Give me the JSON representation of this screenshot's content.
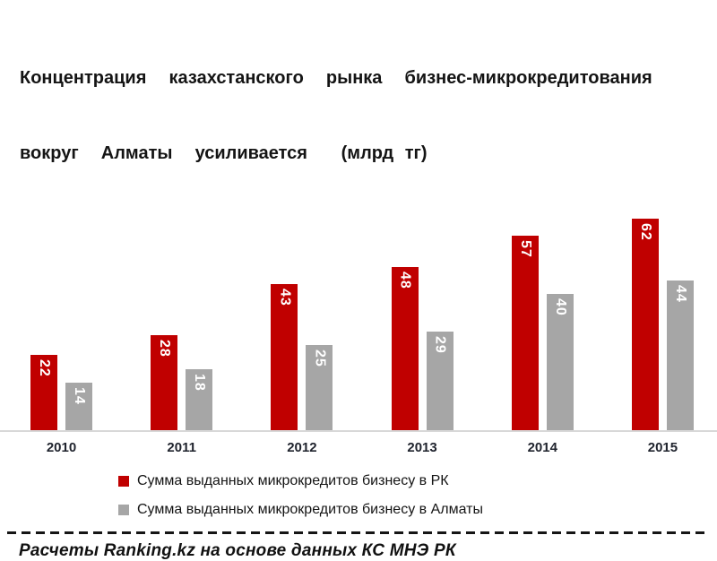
{
  "title": {
    "line1": "Концентрация  казахстанского  рынка  бизнес-микрокредитования",
    "line2": "вокруг  Алматы  усиливается   (млрд тг)"
  },
  "chart_data": {
    "type": "bar",
    "title": "Концентрация казахстанского рынка бизнес-микрокредитования вокруг Алматы усиливается (млрд тг)",
    "unit": "млрд тг",
    "categories": [
      "2010",
      "2011",
      "2012",
      "2013",
      "2014",
      "2015"
    ],
    "series": [
      {
        "name": "Сумма выданных микрокредитов бизнесу в РК",
        "color": "#c00000",
        "values": [
          22,
          28,
          43,
          48,
          57,
          62
        ]
      },
      {
        "name": "Сумма выданных микрокредитов бизнесу в Алматы",
        "color": "#a6a6a6",
        "values": [
          14,
          18,
          25,
          29,
          40,
          44
        ]
      }
    ],
    "ylim": [
      0,
      65
    ],
    "grid": false,
    "data_labels": "inside-top, rotated vertical, white bold",
    "legend_position": "bottom-left"
  },
  "footer": {
    "source": "Расчеты Ranking.kz на основе данных КС МНЭ РК"
  }
}
